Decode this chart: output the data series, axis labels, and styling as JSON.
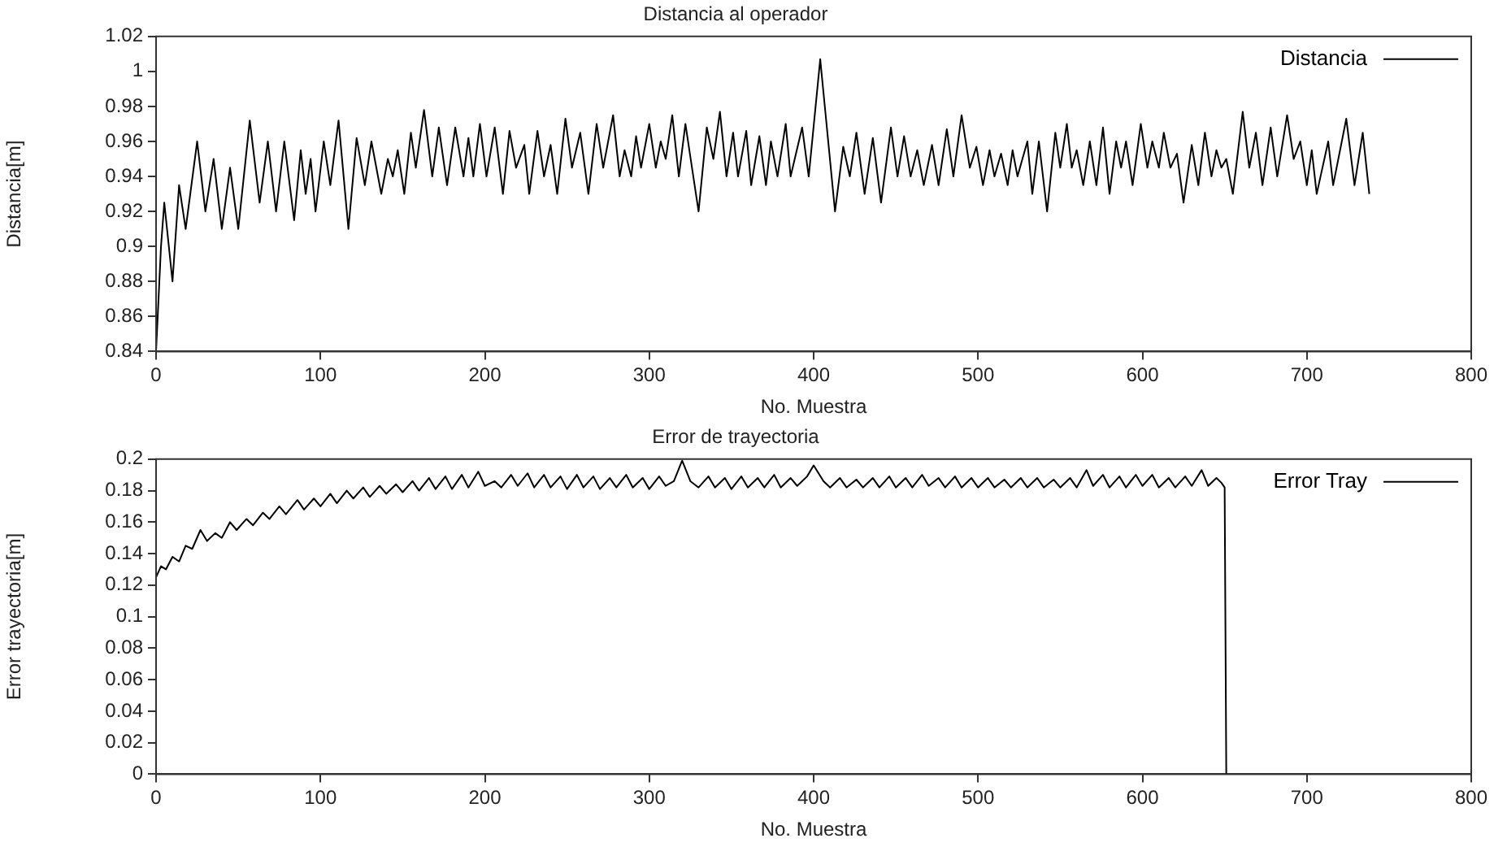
{
  "chart_data": [
    {
      "type": "line",
      "title": "Distancia al operador",
      "xlabel": "No. Muestra",
      "ylabel": "Distancia[m]",
      "xlim": [
        0,
        800
      ],
      "xticks": [
        0,
        100,
        200,
        300,
        400,
        500,
        600,
        700,
        800
      ],
      "ylim": [
        0.84,
        1.02
      ],
      "yticks": [
        0.84,
        0.86,
        0.88,
        0.9,
        0.92,
        0.94,
        0.96,
        0.98,
        1,
        1.02
      ],
      "grid": false,
      "legend": "top right",
      "marker": "none",
      "line_style": "solid",
      "series": [
        {
          "name": "Distancia",
          "color": "#000000",
          "x": [
            0,
            3,
            5,
            10,
            14,
            18,
            25,
            30,
            35,
            40,
            45,
            50,
            57,
            63,
            68,
            73,
            78,
            84,
            88,
            91,
            94,
            97,
            102,
            106,
            111,
            117,
            122,
            127,
            131,
            137,
            141,
            144,
            147,
            151,
            155,
            158,
            163,
            168,
            172,
            177,
            182,
            187,
            190,
            193,
            197,
            201,
            206,
            211,
            215,
            219,
            224,
            227,
            232,
            236,
            240,
            244,
            249,
            253,
            258,
            263,
            268,
            272,
            278,
            282,
            285,
            289,
            292,
            295,
            300,
            304,
            307,
            310,
            314,
            318,
            322,
            326,
            330,
            335,
            339,
            343,
            347,
            351,
            354,
            359,
            362,
            367,
            371,
            374,
            378,
            383,
            386,
            393,
            397,
            404,
            413,
            418,
            422,
            426,
            431,
            436,
            441,
            447,
            451,
            455,
            459,
            463,
            467,
            472,
            476,
            481,
            485,
            490,
            495,
            499,
            503,
            507,
            510,
            514,
            518,
            521,
            524,
            530,
            533,
            537,
            542,
            547,
            550,
            554,
            557,
            560,
            564,
            568,
            572,
            576,
            580,
            584,
            587,
            590,
            594,
            599,
            603,
            606,
            610,
            613,
            617,
            621,
            625,
            630,
            634,
            638,
            642,
            645,
            648,
            651,
            655,
            661,
            665,
            669,
            673,
            678,
            682,
            688,
            692,
            696,
            700,
            703,
            706,
            713,
            716,
            724,
            729,
            734,
            738
          ],
          "values": [
            0.84,
            0.9,
            0.925,
            0.88,
            0.935,
            0.91,
            0.96,
            0.92,
            0.95,
            0.91,
            0.945,
            0.91,
            0.972,
            0.925,
            0.96,
            0.92,
            0.96,
            0.915,
            0.955,
            0.93,
            0.95,
            0.92,
            0.96,
            0.935,
            0.972,
            0.91,
            0.962,
            0.935,
            0.96,
            0.93,
            0.95,
            0.94,
            0.955,
            0.93,
            0.965,
            0.945,
            0.978,
            0.94,
            0.968,
            0.935,
            0.968,
            0.94,
            0.962,
            0.94,
            0.97,
            0.94,
            0.968,
            0.93,
            0.966,
            0.945,
            0.958,
            0.93,
            0.966,
            0.94,
            0.958,
            0.93,
            0.973,
            0.945,
            0.965,
            0.93,
            0.97,
            0.945,
            0.975,
            0.94,
            0.955,
            0.94,
            0.963,
            0.945,
            0.97,
            0.945,
            0.96,
            0.95,
            0.975,
            0.94,
            0.97,
            0.945,
            0.92,
            0.968,
            0.95,
            0.977,
            0.94,
            0.965,
            0.94,
            0.966,
            0.935,
            0.963,
            0.935,
            0.96,
            0.94,
            0.97,
            0.94,
            0.968,
            0.94,
            1.007,
            0.92,
            0.957,
            0.94,
            0.965,
            0.93,
            0.962,
            0.925,
            0.968,
            0.94,
            0.963,
            0.94,
            0.955,
            0.935,
            0.958,
            0.935,
            0.967,
            0.94,
            0.975,
            0.945,
            0.957,
            0.935,
            0.955,
            0.94,
            0.953,
            0.935,
            0.955,
            0.94,
            0.96,
            0.93,
            0.96,
            0.92,
            0.965,
            0.945,
            0.97,
            0.945,
            0.955,
            0.935,
            0.96,
            0.935,
            0.968,
            0.93,
            0.96,
            0.945,
            0.96,
            0.935,
            0.97,
            0.945,
            0.96,
            0.945,
            0.965,
            0.945,
            0.953,
            0.925,
            0.958,
            0.935,
            0.965,
            0.94,
            0.955,
            0.945,
            0.95,
            0.93,
            0.977,
            0.945,
            0.965,
            0.935,
            0.968,
            0.94,
            0.975,
            0.95,
            0.96,
            0.935,
            0.955,
            0.93,
            0.96,
            0.935,
            0.973,
            0.935,
            0.965,
            0.93
          ]
        }
      ]
    },
    {
      "type": "line",
      "title": "Error de trayectoria",
      "xlabel": "No. Muestra",
      "ylabel": "Error trayectoria[m]",
      "xlim": [
        0,
        800
      ],
      "xticks": [
        0,
        100,
        200,
        300,
        400,
        500,
        600,
        700,
        800
      ],
      "ylim": [
        0,
        0.2
      ],
      "yticks": [
        0,
        0.02,
        0.04,
        0.06,
        0.08,
        0.1,
        0.12,
        0.14,
        0.16,
        0.18,
        0.2
      ],
      "grid": false,
      "legend": "top right",
      "marker": "none",
      "line_style": "solid",
      "series": [
        {
          "name": "Error Tray",
          "color": "#000000",
          "x": [
            0,
            3,
            6,
            10,
            14,
            18,
            22,
            27,
            31,
            36,
            40,
            45,
            49,
            55,
            59,
            65,
            69,
            75,
            79,
            86,
            90,
            96,
            100,
            106,
            110,
            116,
            120,
            126,
            130,
            136,
            140,
            146,
            150,
            156,
            160,
            166,
            170,
            176,
            180,
            186,
            190,
            196,
            200,
            206,
            210,
            216,
            220,
            226,
            230,
            236,
            240,
            246,
            250,
            256,
            260,
            266,
            270,
            276,
            280,
            286,
            290,
            296,
            300,
            306,
            310,
            315,
            320,
            325,
            330,
            336,
            340,
            346,
            350,
            356,
            360,
            366,
            370,
            376,
            380,
            386,
            390,
            396,
            400,
            406,
            410,
            416,
            420,
            426,
            430,
            436,
            440,
            446,
            450,
            456,
            460,
            466,
            470,
            476,
            480,
            486,
            490,
            496,
            500,
            506,
            510,
            516,
            520,
            526,
            530,
            536,
            540,
            546,
            550,
            556,
            560,
            566,
            570,
            576,
            580,
            586,
            590,
            596,
            600,
            606,
            610,
            616,
            620,
            626,
            630,
            636,
            640,
            645,
            648,
            650,
            651
          ],
          "values": [
            0.125,
            0.132,
            0.13,
            0.138,
            0.135,
            0.145,
            0.143,
            0.155,
            0.148,
            0.153,
            0.15,
            0.16,
            0.155,
            0.162,
            0.158,
            0.166,
            0.162,
            0.17,
            0.165,
            0.174,
            0.168,
            0.175,
            0.17,
            0.178,
            0.172,
            0.18,
            0.175,
            0.182,
            0.176,
            0.183,
            0.178,
            0.184,
            0.179,
            0.186,
            0.18,
            0.188,
            0.181,
            0.189,
            0.181,
            0.19,
            0.182,
            0.192,
            0.183,
            0.186,
            0.182,
            0.19,
            0.183,
            0.191,
            0.182,
            0.19,
            0.182,
            0.189,
            0.181,
            0.19,
            0.182,
            0.189,
            0.181,
            0.188,
            0.182,
            0.19,
            0.182,
            0.188,
            0.181,
            0.189,
            0.183,
            0.186,
            0.199,
            0.186,
            0.182,
            0.189,
            0.182,
            0.188,
            0.181,
            0.189,
            0.182,
            0.188,
            0.182,
            0.19,
            0.182,
            0.188,
            0.183,
            0.189,
            0.196,
            0.186,
            0.182,
            0.188,
            0.182,
            0.187,
            0.182,
            0.188,
            0.182,
            0.189,
            0.182,
            0.188,
            0.182,
            0.19,
            0.183,
            0.188,
            0.182,
            0.189,
            0.182,
            0.188,
            0.182,
            0.188,
            0.182,
            0.187,
            0.182,
            0.188,
            0.182,
            0.188,
            0.182,
            0.187,
            0.182,
            0.188,
            0.182,
            0.193,
            0.183,
            0.19,
            0.182,
            0.189,
            0.182,
            0.19,
            0.183,
            0.19,
            0.182,
            0.188,
            0.182,
            0.189,
            0.183,
            0.193,
            0.183,
            0.188,
            0.185,
            0.182,
            0
          ]
        }
      ]
    }
  ]
}
